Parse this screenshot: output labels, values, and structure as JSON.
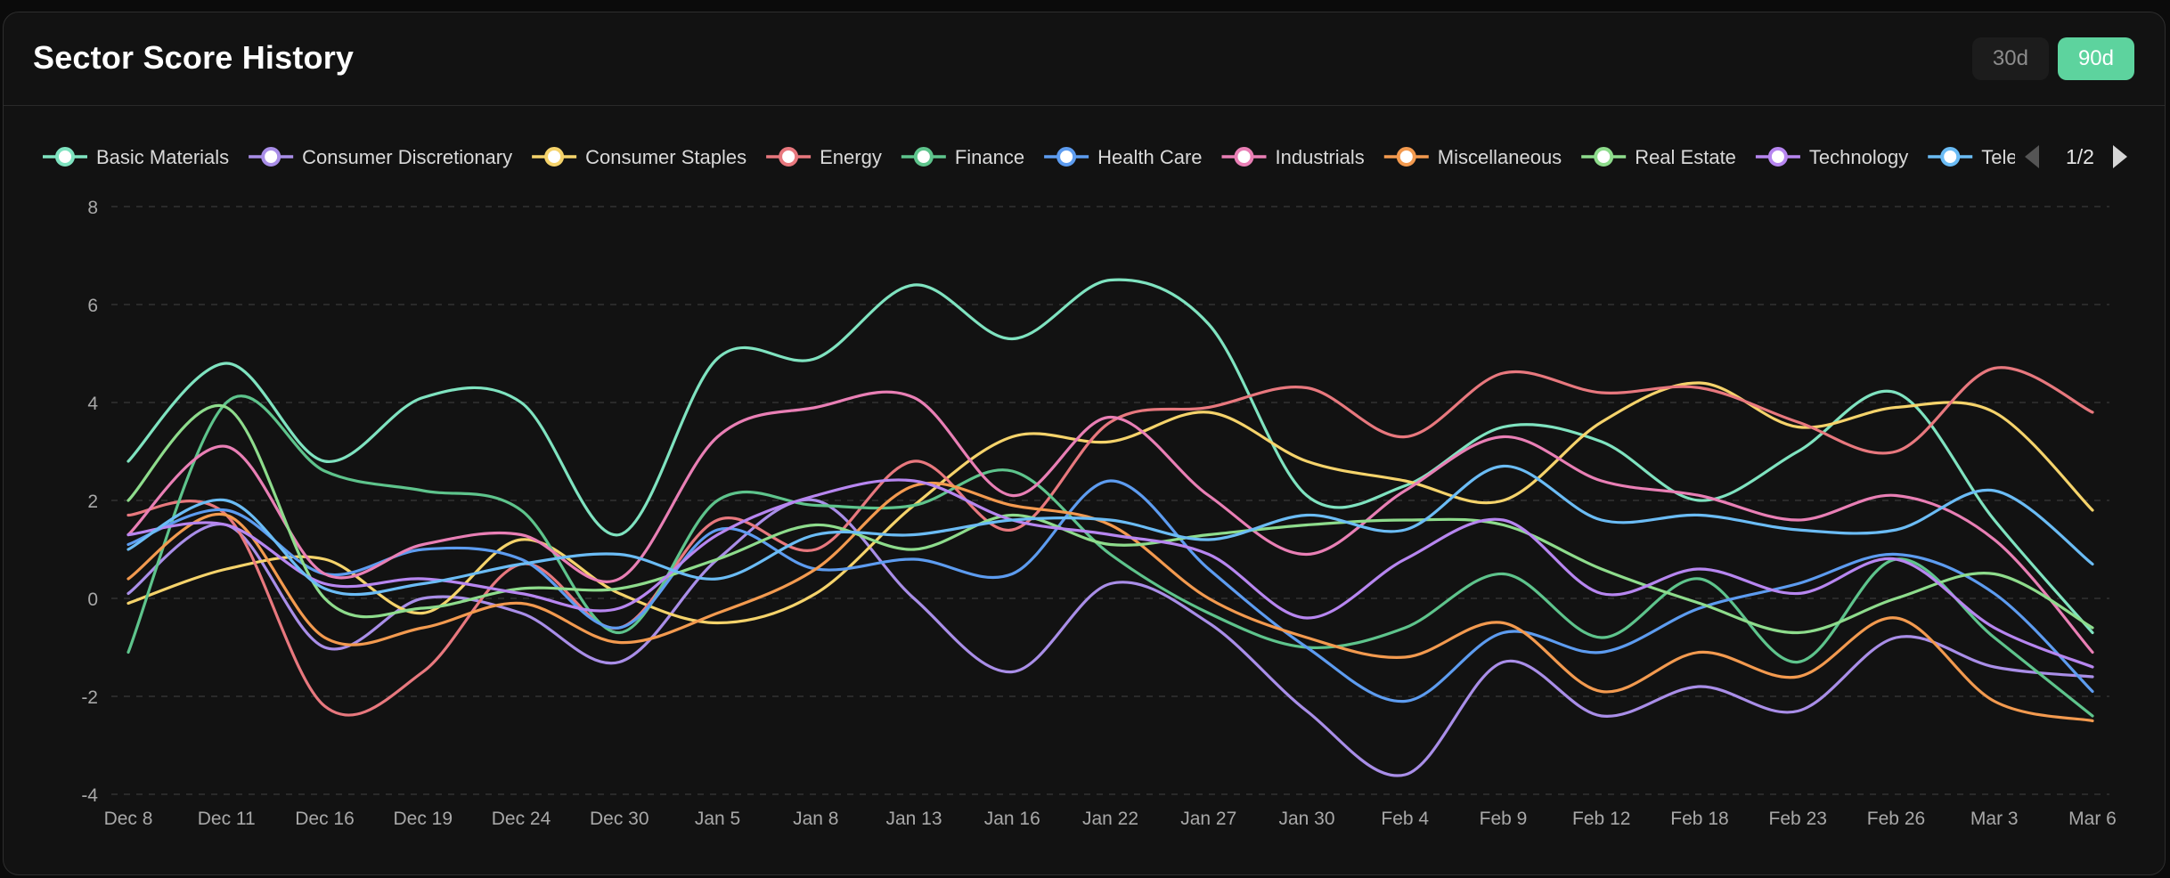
{
  "title": "Sector Score History",
  "range_buttons": [
    {
      "label": "30d",
      "active": false
    },
    {
      "label": "90d",
      "active": true
    }
  ],
  "legend_page": "1/2",
  "chart_data": {
    "type": "line",
    "smooth": true,
    "x": [
      "Dec 8",
      "Dec 11",
      "Dec 16",
      "Dec 19",
      "Dec 24",
      "Dec 30",
      "Jan 5",
      "Jan 8",
      "Jan 13",
      "Jan 16",
      "Jan 22",
      "Jan 27",
      "Jan 30",
      "Feb 4",
      "Feb 9",
      "Feb 12",
      "Feb 18",
      "Feb 23",
      "Feb 26",
      "Mar 3",
      "Mar 6"
    ],
    "ylim": [
      -4,
      8
    ],
    "yticks": [
      8,
      6,
      4,
      2,
      0,
      -2,
      -4
    ],
    "grid": true,
    "legend_position": "top",
    "series": [
      {
        "name": "Basic Materials",
        "color": "#7fe3c0",
        "values": [
          2.8,
          4.8,
          2.8,
          4.1,
          4.0,
          1.3,
          4.9,
          4.9,
          6.4,
          5.3,
          6.5,
          5.6,
          2.1,
          2.3,
          3.5,
          3.2,
          2.0,
          3.0,
          4.2,
          1.6,
          -0.7
        ]
      },
      {
        "name": "Consumer Discretionary",
        "color": "#a98ee8",
        "values": [
          0.1,
          1.5,
          -1.0,
          0.0,
          -0.3,
          -1.3,
          0.8,
          2.0,
          0.0,
          -1.5,
          0.3,
          -0.5,
          -2.3,
          -3.6,
          -1.3,
          -2.4,
          -1.8,
          -2.3,
          -0.8,
          -1.4,
          -1.6
        ]
      },
      {
        "name": "Consumer Staples",
        "color": "#f5d36b",
        "values": [
          -0.1,
          0.6,
          0.8,
          -0.3,
          1.2,
          0.1,
          -0.5,
          0.1,
          1.9,
          3.3,
          3.2,
          3.8,
          2.8,
          2.4,
          2.0,
          3.6,
          4.4,
          3.5,
          3.9,
          3.8,
          1.8
        ]
      },
      {
        "name": "Energy",
        "color": "#e8787e",
        "values": [
          1.7,
          1.7,
          -2.2,
          -1.5,
          0.7,
          -0.6,
          1.6,
          1.0,
          2.8,
          1.4,
          3.6,
          3.9,
          4.3,
          3.3,
          4.6,
          4.2,
          4.3,
          3.6,
          3.0,
          4.7,
          3.8
        ]
      },
      {
        "name": "Finance",
        "color": "#5ec48c",
        "values": [
          -1.1,
          4.0,
          2.6,
          2.2,
          1.8,
          -0.7,
          2.0,
          1.9,
          1.9,
          2.6,
          0.9,
          -0.3,
          -1.0,
          -0.6,
          0.5,
          -0.8,
          0.4,
          -1.3,
          0.8,
          -0.8,
          -2.4
        ]
      },
      {
        "name": "Health Care",
        "color": "#5d9cf0",
        "values": [
          1.1,
          1.8,
          0.5,
          1.0,
          0.8,
          -0.6,
          1.4,
          0.6,
          0.8,
          0.5,
          2.4,
          0.6,
          -1.0,
          -2.1,
          -0.7,
          -1.1,
          -0.2,
          0.3,
          0.9,
          0.1,
          -1.9
        ]
      },
      {
        "name": "Industrials",
        "color": "#e97fb5",
        "values": [
          1.3,
          3.1,
          0.5,
          1.1,
          1.3,
          0.4,
          3.3,
          3.9,
          4.1,
          2.1,
          3.7,
          2.1,
          0.9,
          2.2,
          3.3,
          2.4,
          2.1,
          1.6,
          2.1,
          1.2,
          -1.1
        ]
      },
      {
        "name": "Miscellaneous",
        "color": "#f39a4f",
        "values": [
          0.4,
          1.7,
          -0.8,
          -0.6,
          -0.1,
          -0.9,
          -0.3,
          0.6,
          2.3,
          1.9,
          1.5,
          0.0,
          -0.8,
          -1.2,
          -0.5,
          -1.9,
          -1.1,
          -1.6,
          -0.4,
          -2.1,
          -2.5
        ]
      },
      {
        "name": "Real Estate",
        "color": "#8edc8c",
        "values": [
          2.0,
          3.9,
          0.0,
          -0.2,
          0.2,
          0.2,
          0.8,
          1.5,
          1.0,
          1.7,
          1.1,
          1.3,
          1.5,
          1.6,
          1.5,
          0.6,
          -0.1,
          -0.7,
          0.0,
          0.5,
          -0.6
        ]
      },
      {
        "name": "Technology",
        "color": "#b786f0",
        "values": [
          1.3,
          1.5,
          0.3,
          0.4,
          0.1,
          -0.2,
          1.3,
          2.1,
          2.4,
          1.6,
          1.3,
          0.9,
          -0.4,
          0.8,
          1.6,
          0.1,
          0.6,
          0.1,
          0.8,
          -0.6,
          -1.4
        ]
      },
      {
        "name": "Telecom",
        "color": "#6bbcf5",
        "values": [
          1.0,
          2.0,
          0.2,
          0.3,
          0.7,
          0.9,
          0.4,
          1.3,
          1.3,
          1.6,
          1.6,
          1.2,
          1.7,
          1.4,
          2.7,
          1.6,
          1.7,
          1.4,
          1.4,
          2.2,
          0.7
        ]
      }
    ]
  }
}
